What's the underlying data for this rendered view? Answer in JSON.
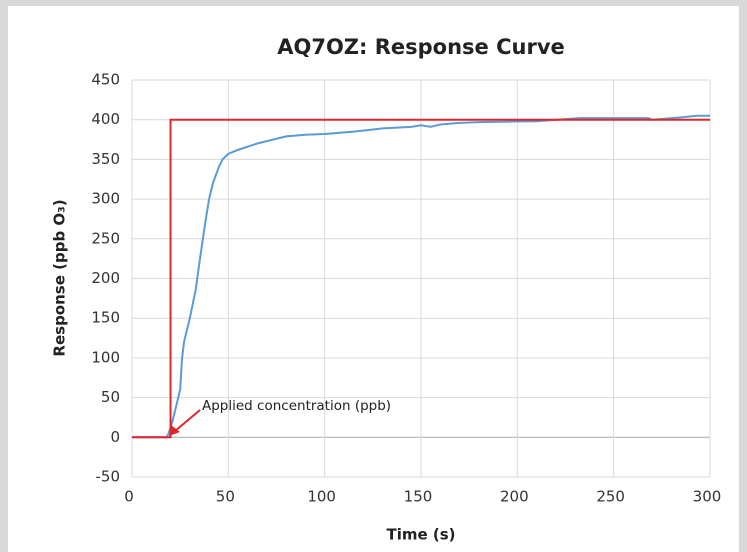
{
  "chart_data": {
    "type": "line",
    "title": "AQ7OZ: Response Curve",
    "xlabel": "Time (s)",
    "ylabel": "Response (ppb O₃)",
    "annotation": "Applied concentration (ppb)",
    "xlim": [
      0,
      300
    ],
    "xticks": [
      0,
      50,
      100,
      150,
      200,
      250,
      300
    ],
    "ylim": [
      -50,
      450
    ],
    "yticks": [
      -50,
      0,
      50,
      100,
      150,
      200,
      250,
      300,
      350,
      400,
      450
    ],
    "grid": true,
    "series": [
      {
        "color": "#5b9bd5",
        "x": [
          0,
          18,
          19,
          21,
          22,
          25,
          26,
          27,
          30,
          33,
          35,
          38,
          40,
          42,
          45,
          47,
          50,
          55,
          60,
          65,
          70,
          75,
          80,
          90,
          100,
          115,
          130,
          145,
          150,
          155,
          160,
          170,
          180,
          210,
          232,
          268,
          270,
          285,
          293,
          300
        ],
        "values": [
          0,
          0,
          5,
          20,
          30,
          60,
          100,
          120,
          150,
          185,
          220,
          270,
          300,
          320,
          340,
          350,
          357,
          362,
          366,
          370,
          373,
          376,
          379,
          381,
          382,
          385,
          389,
          391,
          393,
          391,
          394,
          396,
          397,
          398,
          402,
          402,
          400,
          403,
          405,
          405
        ]
      },
      {
        "color": "#e0262b",
        "x": [
          0,
          20,
          20,
          300
        ],
        "values": [
          0,
          0,
          400,
          400
        ]
      }
    ]
  }
}
